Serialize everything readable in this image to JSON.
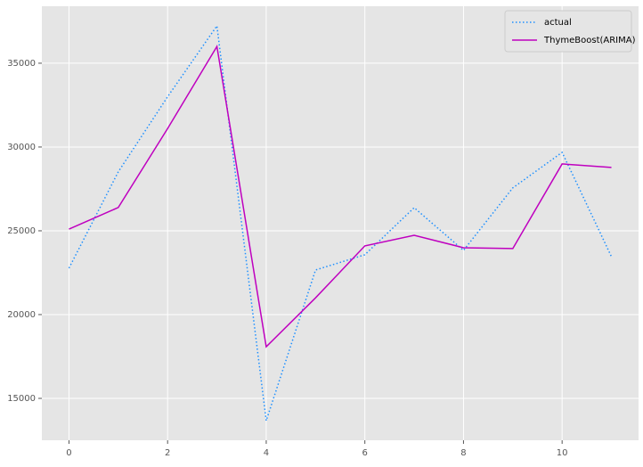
{
  "chart_data": {
    "type": "line",
    "x": [
      0,
      1,
      2,
      3,
      4,
      5,
      6,
      7,
      8,
      9,
      10,
      11
    ],
    "series": [
      {
        "name": "actual",
        "color": "#1e90ff",
        "dash": "dotted",
        "values": [
          22770,
          28520,
          33000,
          37230,
          13670,
          22660,
          23570,
          26380,
          23830,
          27560,
          29680,
          23460
        ]
      },
      {
        "name": "ThymeBoost(ARIMA)",
        "color": "#bf00bf",
        "dash": "solid",
        "values": [
          25100,
          26390,
          31100,
          36000,
          18080,
          21000,
          24100,
          24730,
          23990,
          23940,
          28990,
          28780
        ]
      }
    ],
    "xlim": [
      -0.55,
      11.55
    ],
    "xticks": [
      0,
      2,
      4,
      6,
      8,
      10
    ],
    "ylim": [
      12500,
      38400
    ],
    "yticks": [
      15000,
      20000,
      25000,
      30000,
      35000
    ],
    "grid": true,
    "legend": "upper right"
  }
}
